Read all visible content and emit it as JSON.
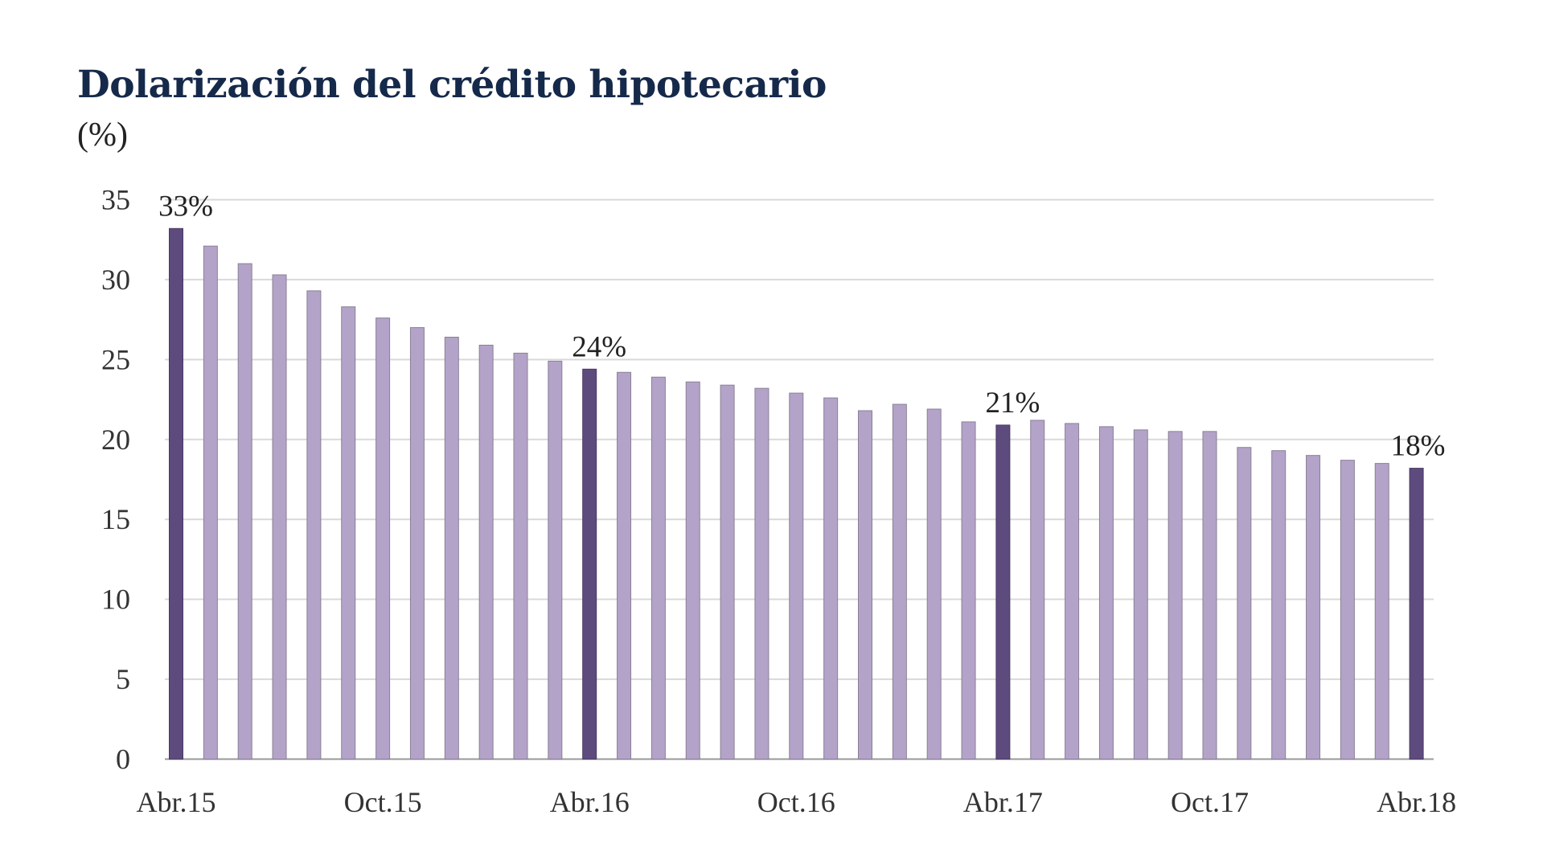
{
  "chart_data": {
    "type": "bar",
    "title": "Dolarización del crédito hipotecario",
    "subtitle": "(%)",
    "ylim": [
      0,
      35
    ],
    "yticks": [
      0,
      5,
      10,
      15,
      20,
      25,
      30,
      35
    ],
    "grid": true,
    "xtick_labels": [
      {
        "index": 0,
        "label": "Abr.15"
      },
      {
        "index": 6,
        "label": "Oct.15"
      },
      {
        "index": 12,
        "label": "Abr.16"
      },
      {
        "index": 18,
        "label": "Oct.16"
      },
      {
        "index": 24,
        "label": "Abr.17"
      },
      {
        "index": 30,
        "label": "Oct.17"
      },
      {
        "index": 36,
        "label": "Abr.18"
      }
    ],
    "values": [
      33.2,
      32.1,
      31.0,
      30.3,
      29.3,
      28.3,
      27.6,
      27.0,
      26.4,
      25.9,
      25.4,
      24.9,
      24.4,
      24.2,
      23.9,
      23.6,
      23.4,
      23.2,
      22.9,
      22.6,
      21.8,
      22.2,
      21.9,
      21.1,
      20.9,
      21.2,
      21.0,
      20.8,
      20.6,
      20.5,
      20.5,
      19.5,
      19.3,
      19.0,
      18.7,
      18.5,
      18.2
    ],
    "highlighted": [
      {
        "index": 0,
        "label": "33%"
      },
      {
        "index": 12,
        "label": "24%"
      },
      {
        "index": 24,
        "label": "21%"
      },
      {
        "index": 36,
        "label": "18%"
      }
    ],
    "colors": {
      "bar": "#b3a3c9",
      "highlight": "#5e4b7e",
      "grid": "#d9d9d9",
      "title": "#15294a"
    }
  }
}
